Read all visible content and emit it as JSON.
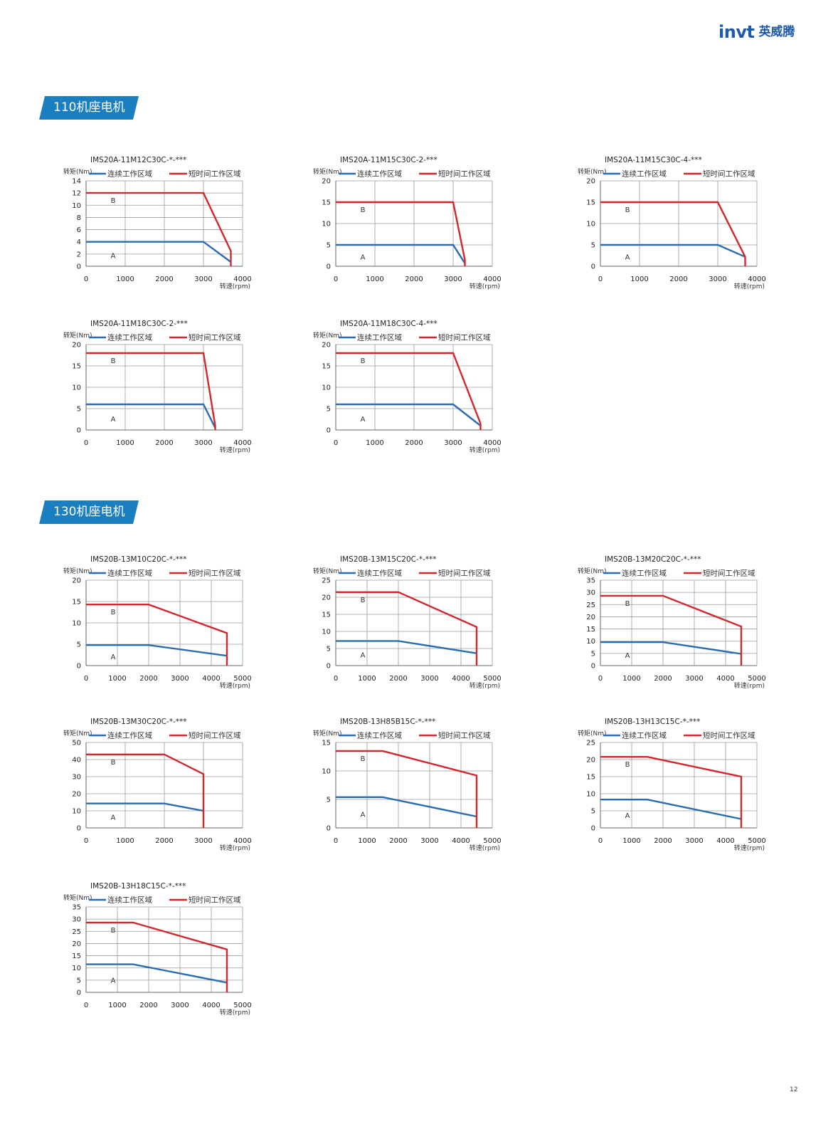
{
  "brand": {
    "logo_text": "invt",
    "logo_cn": "英威腾"
  },
  "sections": [
    {
      "title": "110机座电机"
    },
    {
      "title": "130机座电机"
    }
  ],
  "legend": {
    "continuous": "连续工作区域",
    "short_term": "短时间工作区域"
  },
  "axes": {
    "ylabel": "转矩(Nm)",
    "xlabel": "转速(rpm)"
  },
  "region_labels": {
    "a": "A",
    "b": "B"
  },
  "colors": {
    "continuous": "#2b6cb0",
    "short_term": "#d0282e",
    "grid": "#9a9a9a",
    "accent": "#1a7fc1"
  },
  "page_number": "12",
  "chart_data": [
    {
      "type": "line",
      "title": "IMS20A-11M12C30C-*-***",
      "xlabel": "转速(rpm)",
      "ylabel": "转矩(Nm)",
      "xlim": [
        0,
        4000
      ],
      "ylim": [
        0,
        14
      ],
      "xticks": [
        0,
        1000,
        2000,
        3000,
        4000
      ],
      "yticks": [
        0,
        2,
        4,
        6,
        8,
        10,
        12,
        14
      ],
      "series": [
        {
          "name": "连续工作区域",
          "x": [
            0,
            3000,
            3700
          ],
          "y": [
            4,
            4,
            0.7
          ]
        },
        {
          "name": "短时间工作区域",
          "x": [
            0,
            3000,
            3700,
            3700
          ],
          "y": [
            12,
            12,
            2.5,
            0
          ]
        }
      ]
    },
    {
      "type": "line",
      "title": "IMS20A-11M15C30C-2-***",
      "xlabel": "转速(rpm)",
      "ylabel": "转矩(Nm)",
      "xlim": [
        0,
        4000
      ],
      "ylim": [
        0,
        20
      ],
      "xticks": [
        0,
        1000,
        2000,
        3000,
        4000
      ],
      "yticks": [
        0,
        5,
        10,
        15,
        20
      ],
      "series": [
        {
          "name": "连续工作区域",
          "x": [
            0,
            3000,
            3300
          ],
          "y": [
            5,
            5,
            0.7
          ]
        },
        {
          "name": "短时间工作区域",
          "x": [
            0,
            3000,
            3300,
            3300
          ],
          "y": [
            15,
            15,
            1.5,
            0
          ]
        }
      ]
    },
    {
      "type": "line",
      "title": "IMS20A-11M15C30C-4-***",
      "xlabel": "转速(rpm)",
      "ylabel": "转矩(Nm)",
      "xlim": [
        0,
        4000
      ],
      "ylim": [
        0,
        20
      ],
      "xticks": [
        0,
        1000,
        2000,
        3000,
        4000
      ],
      "yticks": [
        0,
        5,
        10,
        15,
        20
      ],
      "series": [
        {
          "name": "连续工作区域",
          "x": [
            0,
            3000,
            3700
          ],
          "y": [
            5,
            5,
            2.2
          ]
        },
        {
          "name": "短时间工作区域",
          "x": [
            0,
            3000,
            3700,
            3700
          ],
          "y": [
            15,
            15,
            2.2,
            0
          ]
        }
      ]
    },
    {
      "type": "line",
      "title": "IMS20A-11M18C30C-2-***",
      "xlabel": "转速(rpm)",
      "ylabel": "转矩(Nm)",
      "xlim": [
        0,
        4000
      ],
      "ylim": [
        0,
        20
      ],
      "xticks": [
        0,
        1000,
        2000,
        3000,
        4000
      ],
      "yticks": [
        0,
        5,
        10,
        15,
        20
      ],
      "series": [
        {
          "name": "连续工作区域",
          "x": [
            0,
            3000,
            3300
          ],
          "y": [
            6,
            6,
            0.5
          ]
        },
        {
          "name": "短时间工作区域",
          "x": [
            0,
            3000,
            3300,
            3300
          ],
          "y": [
            18,
            18,
            1,
            0
          ]
        }
      ]
    },
    {
      "type": "line",
      "title": "IMS20A-11M18C30C-4-***",
      "xlabel": "转速(rpm)",
      "ylabel": "转矩(Nm)",
      "xlim": [
        0,
        4000
      ],
      "ylim": [
        0,
        20
      ],
      "xticks": [
        0,
        1000,
        2000,
        3000,
        4000
      ],
      "yticks": [
        0,
        5,
        10,
        15,
        20
      ],
      "series": [
        {
          "name": "连续工作区域",
          "x": [
            0,
            3000,
            3700
          ],
          "y": [
            6,
            6,
            1
          ]
        },
        {
          "name": "短时间工作区域",
          "x": [
            0,
            3000,
            3700,
            3700
          ],
          "y": [
            18,
            18,
            1.5,
            0
          ]
        }
      ]
    },
    {
      "type": "line",
      "title": "IMS20B-13M10C20C-*-***",
      "xlabel": "转速(rpm)",
      "ylabel": "转矩(Nm)",
      "xlim": [
        0,
        5000
      ],
      "ylim": [
        0,
        20
      ],
      "xticks": [
        0,
        1000,
        2000,
        3000,
        4000,
        5000
      ],
      "yticks": [
        0,
        5,
        10,
        15,
        20
      ],
      "series": [
        {
          "name": "连续工作区域",
          "x": [
            0,
            2000,
            4500
          ],
          "y": [
            4.8,
            4.8,
            2.3
          ]
        },
        {
          "name": "短时间工作区域",
          "x": [
            0,
            2000,
            4500,
            4500
          ],
          "y": [
            14.3,
            14.3,
            7.6,
            0
          ]
        }
      ]
    },
    {
      "type": "line",
      "title": "IMS20B-13M15C20C-*-***",
      "xlabel": "转速(rpm)",
      "ylabel": "转矩(Nm)",
      "xlim": [
        0,
        5000
      ],
      "ylim": [
        0,
        25
      ],
      "xticks": [
        0,
        1000,
        2000,
        3000,
        4000,
        5000
      ],
      "yticks": [
        0,
        5,
        10,
        15,
        20,
        25
      ],
      "series": [
        {
          "name": "连续工作区域",
          "x": [
            0,
            2000,
            4500
          ],
          "y": [
            7.2,
            7.2,
            3.6
          ]
        },
        {
          "name": "短时间工作区域",
          "x": [
            0,
            2000,
            4500,
            4500
          ],
          "y": [
            21.5,
            21.5,
            11.3,
            0
          ]
        }
      ]
    },
    {
      "type": "line",
      "title": "IMS20B-13M20C20C-*-***",
      "xlabel": "转速(rpm)",
      "ylabel": "转矩(Nm)",
      "xlim": [
        0,
        5000
      ],
      "ylim": [
        0,
        35
      ],
      "xticks": [
        0,
        1000,
        2000,
        3000,
        4000,
        5000
      ],
      "yticks": [
        0,
        5,
        10,
        15,
        20,
        25,
        30,
        35
      ],
      "series": [
        {
          "name": "连续工作区域",
          "x": [
            0,
            2000,
            4500
          ],
          "y": [
            9.6,
            9.6,
            4.8
          ]
        },
        {
          "name": "短时间工作区域",
          "x": [
            0,
            2000,
            4500,
            4500
          ],
          "y": [
            28.6,
            28.6,
            16,
            0
          ]
        }
      ]
    },
    {
      "type": "line",
      "title": "IMS20B-13M30C20C-*-***",
      "xlabel": "转速(rpm)",
      "ylabel": "转矩(Nm)",
      "xlim": [
        0,
        4000
      ],
      "ylim": [
        0,
        50
      ],
      "xticks": [
        0,
        1000,
        2000,
        3000,
        4000
      ],
      "yticks": [
        0,
        10,
        20,
        30,
        40,
        50
      ],
      "series": [
        {
          "name": "连续工作区域",
          "x": [
            0,
            2000,
            3000
          ],
          "y": [
            14.3,
            14.3,
            10
          ]
        },
        {
          "name": "短时间工作区域",
          "x": [
            0,
            2000,
            3000,
            3000
          ],
          "y": [
            43,
            43,
            31.5,
            0
          ]
        }
      ]
    },
    {
      "type": "line",
      "title": "IMS20B-13H85B15C-*-***",
      "xlabel": "转速(rpm)",
      "ylabel": "转矩(Nm)",
      "xlim": [
        0,
        5000
      ],
      "ylim": [
        0,
        15
      ],
      "xticks": [
        0,
        1000,
        2000,
        3000,
        4000,
        5000
      ],
      "yticks": [
        0,
        5,
        10,
        15
      ],
      "series": [
        {
          "name": "连续工作区域",
          "x": [
            0,
            1500,
            4500
          ],
          "y": [
            5.4,
            5.4,
            2
          ]
        },
        {
          "name": "短时间工作区域",
          "x": [
            0,
            1500,
            4500,
            4500
          ],
          "y": [
            13.5,
            13.5,
            9.2,
            0
          ]
        }
      ]
    },
    {
      "type": "line",
      "title": "IMS20B-13H13C15C-*-***",
      "xlabel": "转速(rpm)",
      "ylabel": "转矩(Nm)",
      "xlim": [
        0,
        5000
      ],
      "ylim": [
        0,
        25
      ],
      "xticks": [
        0,
        1000,
        2000,
        3000,
        4000,
        5000
      ],
      "yticks": [
        0,
        5,
        10,
        15,
        20,
        25
      ],
      "series": [
        {
          "name": "连续工作区域",
          "x": [
            0,
            1500,
            4500
          ],
          "y": [
            8.3,
            8.3,
            2.6
          ]
        },
        {
          "name": "短时间工作区域",
          "x": [
            0,
            1500,
            4500,
            4500
          ],
          "y": [
            20.8,
            20.8,
            15,
            0
          ]
        }
      ]
    },
    {
      "type": "line",
      "title": "IMS20B-13H18C15C-*-***",
      "xlabel": "转速(rpm)",
      "ylabel": "转矩(Nm)",
      "xlim": [
        0,
        5000
      ],
      "ylim": [
        0,
        35
      ],
      "xticks": [
        0,
        1000,
        2000,
        3000,
        4000,
        5000
      ],
      "yticks": [
        0,
        5,
        10,
        15,
        20,
        25,
        30,
        35
      ],
      "series": [
        {
          "name": "连续工作区域",
          "x": [
            0,
            1500,
            4500
          ],
          "y": [
            11.5,
            11.5,
            4
          ]
        },
        {
          "name": "短时间工作区域",
          "x": [
            0,
            1500,
            4500,
            4500
          ],
          "y": [
            28.6,
            28.6,
            17.6,
            0
          ]
        }
      ]
    }
  ]
}
